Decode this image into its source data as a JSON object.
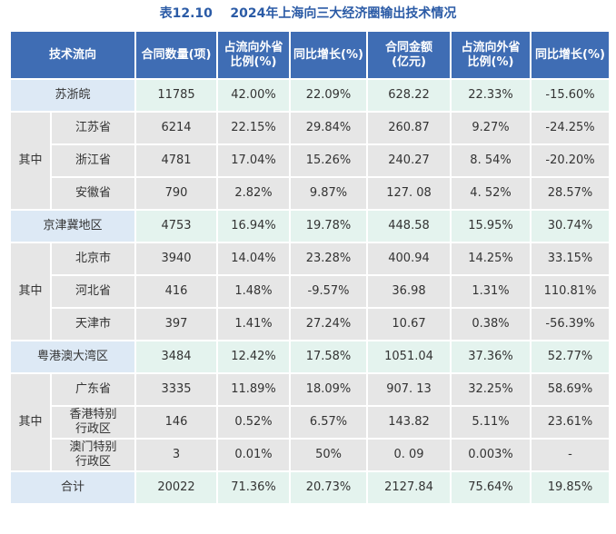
{
  "title": "表12.10    2024年上海向三大经济圈输出技术情况",
  "table": {
    "header": [
      "技术流向",
      "合同数量(项)",
      "占流向外省\n比例(%)",
      "同比增长(%)",
      "合同金额\n(亿元)",
      "占流向外省\n比例(%)",
      "同比增长(%)"
    ],
    "groups": [
      {
        "name": "苏浙皖",
        "values": [
          "11785",
          "42.00%",
          "22.09%",
          "628.22",
          "22.33%",
          "-15.60%"
        ],
        "sub_label": "其中",
        "children": [
          {
            "name": "江苏省",
            "values": [
              "6214",
              "22.15%",
              "29.84%",
              "260.87",
              "9.27%",
              "-24.25%"
            ]
          },
          {
            "name": "浙江省",
            "values": [
              "4781",
              "17.04%",
              "15.26%",
              "240.27",
              "8. 54%",
              "-20.20%"
            ]
          },
          {
            "name": "安徽省",
            "values": [
              "790",
              "2.82%",
              "9.87%",
              "127. 08",
              "4. 52%",
              "28.57%"
            ]
          }
        ]
      },
      {
        "name": "京津冀地区",
        "values": [
          "4753",
          "16.94%",
          "19.78%",
          "448.58",
          "15.95%",
          "30.74%"
        ],
        "sub_label": "其中",
        "children": [
          {
            "name": "北京市",
            "values": [
              "3940",
              "14.04%",
              "23.28%",
              "400.94",
              "14.25%",
              "33.15%"
            ]
          },
          {
            "name": "河北省",
            "values": [
              "416",
              "1.48%",
              "-9.57%",
              "36.98",
              "1.31%",
              "110.81%"
            ]
          },
          {
            "name": "天津市",
            "values": [
              "397",
              "1.41%",
              "27.24%",
              "10.67",
              "0.38%",
              "-56.39%"
            ]
          }
        ]
      },
      {
        "name": "粤港澳大湾区",
        "values": [
          "3484",
          "12.42%",
          "17.58%",
          "1051.04",
          "37.36%",
          "52.77%"
        ],
        "sub_label": "其中",
        "children": [
          {
            "name": "广东省",
            "values": [
              "3335",
              "11.89%",
              "18.09%",
              "907. 13",
              "32.25%",
              "58.69%"
            ]
          },
          {
            "name": "香港特别\n行政区",
            "values": [
              "146",
              "0.52%",
              "6.57%",
              "143.82",
              "5.11%",
              "23.61%"
            ]
          },
          {
            "name": "澳门特别\n行政区",
            "values": [
              "3",
              "0.01%",
              "50%",
              "0. 09",
              "0.003%",
              "-"
            ]
          }
        ]
      }
    ],
    "total": {
      "name": "合计",
      "values": [
        "20022",
        "71.36%",
        "20.73%",
        "2127.84",
        "75.64%",
        "19.85%"
      ]
    }
  }
}
